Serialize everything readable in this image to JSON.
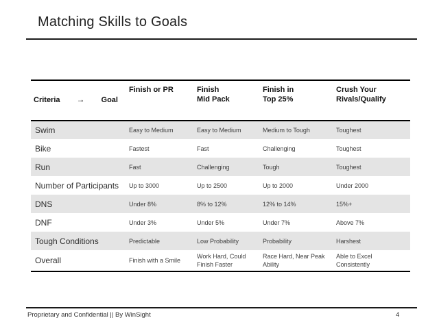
{
  "slide": {
    "title": "Matching Skills to Goals",
    "footer": "Proprietary and Confidential || By WinSight",
    "page_number": "4"
  },
  "colors": {
    "shaded_row": "#e4e4e4",
    "rule_line": "#1a1a1a",
    "text": "#2e2e2e"
  },
  "icons": {
    "arrow_right": "→"
  },
  "table": {
    "header": {
      "criteria_label": "Criteria",
      "arrow": "→",
      "goal_label": "Goal",
      "columns": [
        "Finish or PR",
        "Finish\nMid Pack",
        "Finish in\nTop 25%",
        "Crush Your\nRivals/Qualify"
      ]
    },
    "rows": [
      {
        "cells": [
          "Swim",
          "Easy to Medium",
          "Easy to Medium",
          "Medium to Tough",
          "Toughest"
        ]
      },
      {
        "cells": [
          "Bike",
          "Fastest",
          "Fast",
          "Challenging",
          "Toughest"
        ]
      },
      {
        "cells": [
          "Run",
          "Fast",
          "Challenging",
          "Tough",
          "Toughest"
        ]
      },
      {
        "cells": [
          "Number of Participants",
          "Up to 3000",
          "Up to 2500",
          "Up to 2000",
          "Under 2000"
        ]
      },
      {
        "cells": [
          "DNS",
          "Under 8%",
          "8% to 12%",
          "12% to 14%",
          "15%+"
        ]
      },
      {
        "cells": [
          "DNF",
          "Under 3%",
          "Under 5%",
          "Under 7%",
          "Above 7%"
        ]
      },
      {
        "cells": [
          "Tough Conditions",
          "Predictable",
          "Low Probability",
          "Probability",
          "Harshest"
        ]
      },
      {
        "cells": [
          "Overall",
          "Finish with a Smile",
          "Work Hard, Could Finish Faster",
          "Race Hard, Near Peak Ability",
          "Able to Excel Consistently"
        ]
      }
    ]
  }
}
